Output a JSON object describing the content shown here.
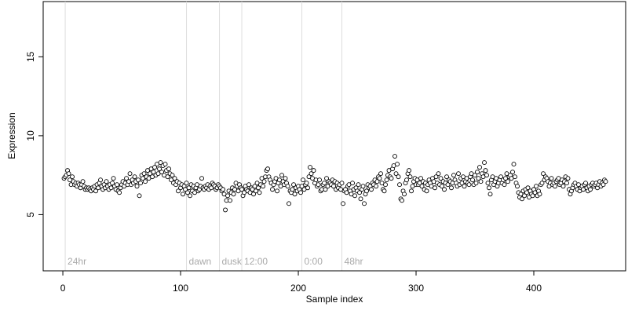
{
  "chart_data": {
    "type": "scatter",
    "x_label": "Sample index",
    "y_label": "Expression",
    "xlim": [
      -16.7,
      478
    ],
    "ylim": [
      1.44,
      18.5
    ],
    "xticks": [
      0,
      100,
      200,
      300,
      400
    ],
    "yticks": [
      5,
      10,
      15
    ],
    "point_fill": "#ffffff",
    "point_stroke": "#000000",
    "marker_line_color": "#dddddd",
    "markers": [
      {
        "x": 2,
        "label": "24hr"
      },
      {
        "x": 105,
        "label": "dawn"
      },
      {
        "x": 133,
        "label": "dusk"
      },
      {
        "x": 152,
        "label": "12:00"
      },
      {
        "x": 203,
        "label": "0:00"
      },
      {
        "x": 237,
        "label": "48hr"
      }
    ],
    "x": [
      1,
      2,
      3,
      4,
      5,
      6,
      7,
      8,
      9,
      10,
      11,
      12,
      13,
      14,
      15,
      16,
      17,
      18,
      19,
      20,
      21,
      22,
      23,
      24,
      25,
      26,
      27,
      28,
      29,
      30,
      31,
      32,
      33,
      34,
      35,
      36,
      37,
      38,
      39,
      40,
      41,
      42,
      43,
      44,
      45,
      46,
      47,
      48,
      49,
      50,
      51,
      52,
      53,
      54,
      55,
      56,
      57,
      58,
      59,
      60,
      61,
      62,
      63,
      64,
      65,
      66,
      67,
      68,
      69,
      70,
      71,
      72,
      73,
      74,
      75,
      76,
      77,
      78,
      79,
      80,
      81,
      82,
      83,
      84,
      85,
      86,
      87,
      88,
      89,
      90,
      91,
      92,
      93,
      94,
      95,
      96,
      97,
      98,
      99,
      100,
      101,
      102,
      103,
      104,
      105,
      106,
      107,
      108,
      109,
      110,
      111,
      112,
      113,
      114,
      115,
      116,
      117,
      118,
      119,
      120,
      121,
      122,
      123,
      124,
      125,
      126,
      127,
      128,
      129,
      130,
      131,
      132,
      133,
      134,
      135,
      136,
      137,
      138,
      139,
      140,
      141,
      142,
      143,
      144,
      145,
      146,
      147,
      148,
      149,
      150,
      151,
      152,
      153,
      154,
      155,
      156,
      157,
      158,
      159,
      160,
      161,
      162,
      163,
      164,
      165,
      166,
      167,
      168,
      169,
      170,
      171,
      172,
      173,
      174,
      175,
      176,
      177,
      178,
      179,
      180,
      181,
      182,
      183,
      184,
      185,
      186,
      187,
      188,
      189,
      190,
      191,
      192,
      193,
      194,
      195,
      196,
      197,
      198,
      199,
      200,
      201,
      202,
      203,
      204,
      205,
      206,
      207,
      208,
      209,
      210,
      211,
      212,
      213,
      214,
      215,
      216,
      217,
      218,
      219,
      220,
      221,
      222,
      223,
      224,
      225,
      226,
      227,
      228,
      229,
      230,
      231,
      232,
      233,
      234,
      235,
      236,
      237,
      238,
      239,
      240,
      241,
      242,
      243,
      244,
      245,
      246,
      247,
      248,
      249,
      250,
      251,
      252,
      253,
      254,
      255,
      256,
      257,
      258,
      259,
      260,
      261,
      262,
      263,
      264,
      265,
      266,
      267,
      268,
      269,
      270,
      271,
      272,
      273,
      274,
      275,
      276,
      277,
      278,
      279,
      280,
      281,
      282,
      283,
      284,
      285,
      286,
      287,
      288,
      289,
      290,
      291,
      292,
      293,
      294,
      295,
      296,
      297,
      298,
      299,
      300,
      301,
      302,
      303,
      304,
      305,
      306,
      307,
      308,
      309,
      310,
      311,
      312,
      313,
      314,
      315,
      316,
      317,
      318,
      319,
      320,
      321,
      322,
      323,
      324,
      325,
      326,
      327,
      328,
      329,
      330,
      331,
      332,
      333,
      334,
      335,
      336,
      337,
      338,
      339,
      340,
      341,
      342,
      343,
      344,
      345,
      346,
      347,
      348,
      349,
      350,
      351,
      352,
      353,
      354,
      355,
      356,
      357,
      358,
      359,
      360,
      361,
      362,
      363,
      364,
      365,
      366,
      367,
      368,
      369,
      370,
      371,
      372,
      373,
      374,
      375,
      376,
      377,
      378,
      379,
      380,
      381,
      382,
      383,
      384,
      385,
      386,
      387,
      388,
      389,
      390,
      391,
      392,
      393,
      394,
      395,
      396,
      397,
      398,
      399,
      400,
      401,
      402,
      403,
      404,
      405,
      406,
      407,
      408,
      409,
      410,
      411,
      412,
      413,
      414,
      415,
      416,
      417,
      418,
      419,
      420,
      421,
      422,
      423,
      424,
      425,
      426,
      427,
      428,
      429,
      430,
      431,
      432,
      433,
      434,
      435,
      436,
      437,
      438,
      439,
      440,
      441,
      442,
      443,
      444,
      445,
      446,
      447,
      448,
      449,
      450,
      451,
      452,
      453,
      454,
      455,
      456,
      457,
      458,
      459,
      460,
      461
    ],
    "values": [
      7.3,
      7.4,
      7.5,
      7.8,
      7.6,
      7.2,
      6.9,
      7.4,
      7.1,
      6.9,
      7.0,
      6.8,
      7.0,
      6.9,
      6.7,
      6.9,
      7.1,
      6.8,
      6.6,
      6.7,
      6.6,
      6.7,
      6.6,
      6.5,
      6.7,
      6.6,
      6.8,
      6.5,
      6.9,
      6.7,
      7.0,
      7.2,
      6.8,
      6.6,
      6.9,
      6.7,
      7.1,
      6.8,
      6.6,
      6.9,
      6.7,
      7.0,
      7.3,
      6.8,
      6.6,
      6.9,
      6.5,
      6.4,
      6.7,
      6.9,
      7.1,
      6.8,
      7.0,
      7.3,
      6.9,
      7.1,
      7.6,
      6.9,
      7.2,
      7.0,
      7.4,
      7.1,
      6.8,
      7.2,
      6.2,
      7.0,
      7.5,
      7.3,
      7.6,
      7.1,
      7.4,
      7.8,
      7.3,
      7.6,
      7.9,
      7.4,
      7.7,
      8.0,
      7.5,
      8.2,
      7.6,
      7.9,
      8.3,
      7.7,
      8.1,
      7.5,
      8.2,
      7.8,
      7.4,
      7.9,
      7.6,
      7.2,
      7.5,
      7.0,
      7.3,
      6.9,
      7.1,
      6.5,
      7.0,
      6.7,
      6.9,
      6.3,
      6.8,
      6.6,
      7.0,
      6.4,
      6.7,
      6.2,
      6.9,
      6.5,
      6.8,
      6.4,
      6.7,
      6.9,
      6.5,
      6.6,
      6.8,
      7.3,
      6.7,
      6.6,
      6.8,
      6.7,
      6.9,
      6.6,
      6.8,
      6.7,
      7.0,
      6.9,
      6.8,
      6.6,
      6.7,
      6.9,
      6.8,
      6.7,
      6.5,
      6.6,
      6.3,
      5.3,
      5.9,
      6.2,
      6.5,
      5.9,
      6.4,
      6.7,
      6.3,
      6.6,
      7.0,
      6.8,
      6.5,
      6.9,
      6.7,
      6.6,
      6.2,
      6.4,
      6.8,
      6.6,
      6.5,
      6.9,
      6.4,
      6.7,
      6.6,
      6.3,
      6.8,
      6.5,
      7.0,
      6.7,
      6.4,
      6.9,
      7.3,
      6.8,
      7.1,
      7.4,
      7.8,
      7.9,
      7.4,
      7.2,
      7.0,
      6.6,
      6.9,
      7.1,
      7.3,
      6.5,
      7.0,
      7.2,
      6.8,
      7.5,
      7.1,
      6.9,
      7.3,
      7.0,
      6.8,
      5.7,
      6.5,
      6.4,
      6.6,
      6.9,
      6.3,
      6.7,
      6.5,
      6.8,
      6.6,
      6.4,
      6.8,
      7.2,
      6.6,
      6.9,
      7.0,
      6.7,
      7.4,
      8.0,
      7.6,
      7.3,
      7.8,
      7.0,
      7.2,
      6.8,
      6.9,
      7.2,
      6.5,
      6.6,
      6.9,
      7.0,
      6.6,
      7.3,
      6.8,
      7.1,
      7.0,
      6.9,
      7.2,
      6.8,
      7.1,
      6.6,
      7.0,
      6.7,
      6.9,
      6.6,
      7.0,
      5.7,
      6.5,
      6.6,
      6.4,
      6.8,
      6.9,
      6.5,
      6.3,
      7.0,
      6.6,
      6.2,
      6.7,
      6.5,
      6.9,
      6.4,
      6.0,
      6.6,
      6.8,
      5.7,
      6.3,
      6.5,
      6.9,
      6.7,
      6.8,
      6.6,
      7.0,
      6.9,
      7.2,
      6.8,
      7.1,
      7.4,
      7.3,
      7.6,
      7.0,
      6.6,
      6.5,
      6.9,
      7.2,
      7.5,
      7.8,
      7.4,
      7.3,
      7.9,
      8.1,
      8.7,
      7.6,
      8.2,
      7.4,
      6.9,
      6.0,
      5.9,
      6.5,
      6.3,
      7.0,
      7.2,
      7.6,
      7.8,
      7.4,
      6.5,
      6.8,
      7.1,
      7.3,
      6.9,
      7.2,
      6.9,
      7.0,
      7.3,
      6.8,
      7.1,
      6.6,
      7.0,
      6.5,
      6.9,
      7.2,
      7.0,
      6.8,
      7.3,
      7.1,
      6.7,
      7.4,
      7.0,
      7.6,
      6.9,
      7.3,
      6.8,
      7.1,
      6.6,
      7.0,
      7.4,
      6.9,
      7.2,
      7.1,
      6.7,
      7.0,
      7.5,
      7.2,
      7.0,
      6.8,
      7.6,
      6.9,
      7.3,
      7.0,
      7.4,
      6.8,
      7.1,
      7.3,
      7.0,
      6.9,
      7.4,
      7.6,
      7.2,
      6.9,
      7.5,
      7.0,
      7.7,
      7.3,
      8.0,
      7.1,
      7.6,
      7.4,
      8.3,
      7.8,
      7.5,
      7.0,
      6.7,
      6.3,
      7.2,
      7.4,
      6.9,
      7.1,
      7.3,
      6.8,
      7.0,
      7.2,
      7.4,
      7.0,
      7.2,
      6.9,
      7.3,
      7.6,
      7.1,
      7.4,
      7.5,
      7.3,
      7.7,
      8.2,
      7.4,
      7.0,
      6.8,
      6.4,
      6.1,
      6.3,
      6.0,
      6.5,
      6.2,
      6.6,
      6.4,
      6.7,
      6.1,
      6.5,
      6.3,
      6.2,
      6.6,
      6.4,
      6.8,
      6.2,
      6.5,
      6.3,
      6.9,
      7.0,
      7.6,
      7.2,
      7.4,
      7.3,
      7.1,
      6.8,
      7.0,
      7.3,
      6.9,
      7.0,
      6.8,
      7.1,
      7.2,
      7.3,
      6.9,
      7.0,
      7.2,
      6.8,
      7.1,
      7.4,
      7.0,
      7.3,
      6.6,
      6.3,
      6.5,
      6.7,
      6.9,
      7.0,
      6.8,
      6.6,
      6.9,
      6.5,
      6.7,
      6.8,
      6.6,
      6.9,
      7.0,
      6.7,
      6.5,
      6.8,
      6.6,
      6.9,
      7.0,
      6.8,
      6.9,
      7.0,
      6.7,
      6.9,
      7.1,
      6.8,
      7.0,
      6.9,
      7.2,
      7.1
    ]
  }
}
